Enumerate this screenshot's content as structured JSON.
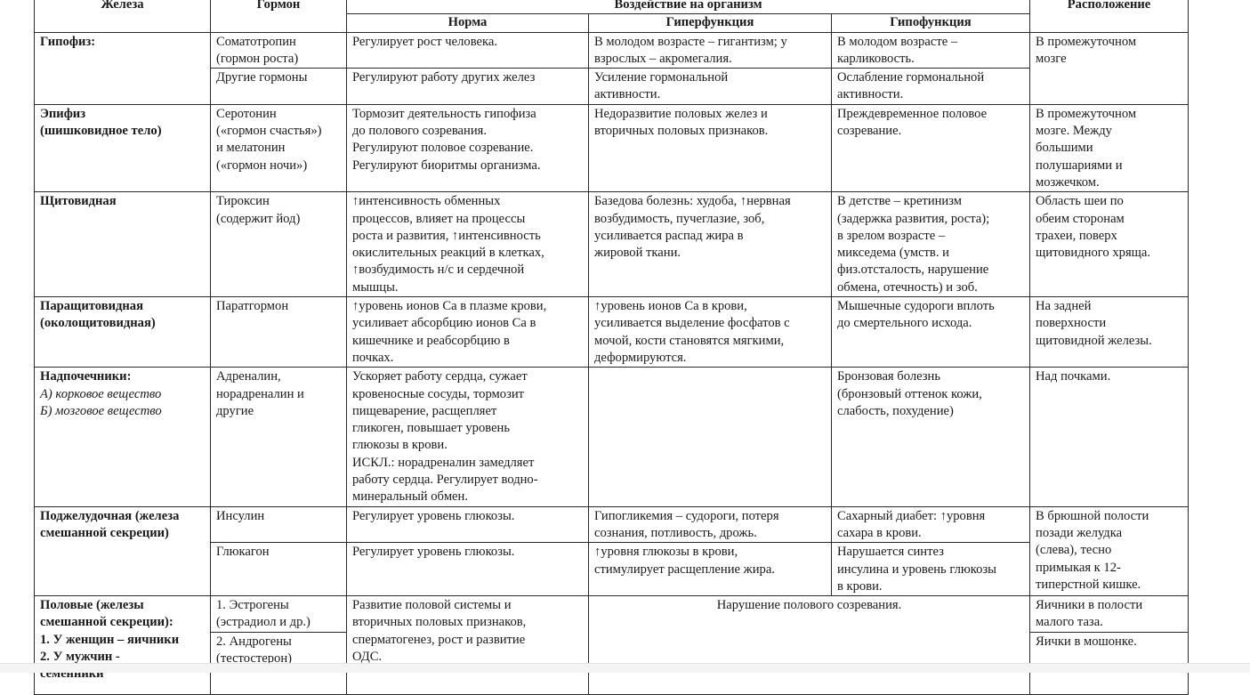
{
  "headers": {
    "gland": "Железа",
    "hormone": "Гормон",
    "effect": "Воздействие на организм",
    "norm": "Норма",
    "hyper": "Гиперфункция",
    "hypo": "Гипофункция",
    "location": "Расположение"
  },
  "rows": {
    "pituitary": {
      "gland": "Гипофиз:",
      "location": "В промежуточном\nмозге",
      "sub": [
        {
          "hormone": "Соматотропин\n(гормон роста)",
          "norm": "Регулирует рост человека.",
          "hyper": "В молодом возрасте – гигантизм; у взрослых – акромегалия.",
          "hypo": "В молодом возрасте –\nкарликовость."
        },
        {
          "hormone": "Другие гормоны",
          "norm": "Регулируют работу других желез",
          "hyper": "Усиление гормональной\nактивности.",
          "hypo": "Ослабление гормональной\nактивности."
        }
      ]
    },
    "pineal": {
      "gland": "Эпифиз\n (шишковидное тело)",
      "hormone": "Серотонин\n(«гормон счастья»)\nи мелатонин\n(«гормон ночи»)",
      "norm": "Тормозит деятельность гипофиза\nдо полового созревания.\nРегулируют половое созревание.\nРегулируют биоритмы организма.",
      "hyper": "Недоразвитие половых желез и\nвторичных половых признаков.",
      "hypo": "Преждевременное половое\nсозревание.",
      "location": "В промежуточном\nмозге. Между\nбольшими\nполушариями и\nмозжечком."
    },
    "thyroid": {
      "gland": "Щитовидная",
      "hormone": "Тироксин\n(содержит йод)",
      "norm": "↑интенсивность обменных\nпроцессов, влияет на процессы\nроста и развития, ↑интенсивность\nокислительных реакций в клетках,\n↑возбудимость н/с и сердечной\nмышцы.",
      "hyper": "Базедова болезнь: худоба, ↑нервная\nвозбудимость, пучеглазие, зоб,\nусиливается распад жира в\nжировой ткани.",
      "hypo": "В детстве – кретинизм\n(задержка развития, роста);\nв зрелом возрасте –\nмикседема (умств. и\nфиз.отсталость, нарушение\nобмена, отечность) и зоб.",
      "location": "Область шеи по\nобеим сторонам\nтрахеи, поверх\nщитовидного хряща."
    },
    "parathyroid": {
      "gland": "Паращитовидная\n(околощитовидная)",
      "hormone": "Паратгормон",
      "norm": "↑уровень ионов Са в плазме крови,\nусиливает абсорбцию ионов Са в\nкишечнике и реабсорбцию в\nпочках.",
      "hyper": "↑уровень ионов Са в крови,\nусиливается выделение фосфатов с\nмочой, кости становятся мягкими,\nдеформируются.",
      "hypo": "Мышечные судороги вплоть\nдо смертельного исхода.",
      "location": "На задней\nповерхности\nщитовидной железы."
    },
    "adrenal": {
      "gland": "Надпочечники:",
      "gland_a": "А) корковое вещество",
      "gland_b": "Б) мозговое вещество",
      "hormone": "Адреналин,\nнорадреналин и\nдругие",
      "norm": "Ускоряет работу сердца, сужает\nкровеносные сосуды, тормозит\nпищеварение, расщепляет\nгликоген, повышает уровень\nглюкозы в крови.\nИСКЛ.: норадреналин замедляет\nработу сердца. Регулирует водно-\nминеральный обмен.",
      "hyper": "",
      "hypo": "Бронзовая болезнь\n(бронзовый оттенок кожи,\nслабость, похудение)",
      "location": "Над почками."
    },
    "pancreas": {
      "gland": "Поджелудочная (железа\nсмешанной секреции)",
      "location": "В брюшной полости\nпозади  желудка\n(слева), тесно\nпримыкая к 12-\nтиперстной кишке.",
      "sub": [
        {
          "hormone": "Инсулин",
          "norm": "Регулирует уровень глюкозы.",
          "hyper": "Гипогликемия – судороги, потеря\nсознания, потливость, дрожь.",
          "hypo": "Сахарный диабет: ↑уровня\nсахара в крови."
        },
        {
          "hormone": "Глюкагон",
          "norm": "Регулирует уровень глюкозы.",
          "hyper": "↑уровня глюкозы в крови,\nстимулирует расщепление жира.",
          "hypo": "Нарушается синтез\nинсулина и уровень глюкозы\nв крови."
        }
      ]
    },
    "sex": {
      "gland": "Половые  (железы\nсмешанной секреции):\n1. У женщин – яичники\n2. У мужчин -\nсеменники",
      "norm": "Развитие половой системы и\nвторичных половых признаков,\nсперматогенез, рост и развитие\nОДС.",
      "disorder": "Нарушение полового созревания.",
      "sub": [
        {
          "hormone": "1. Эстрогены\n(эстрадиол и др.)",
          "location": "Яичники в полости\nмалого таза."
        },
        {
          "hormone": "2. Андрогены\n(тестостерон)",
          "location": "Яички в мошонке."
        }
      ]
    }
  }
}
